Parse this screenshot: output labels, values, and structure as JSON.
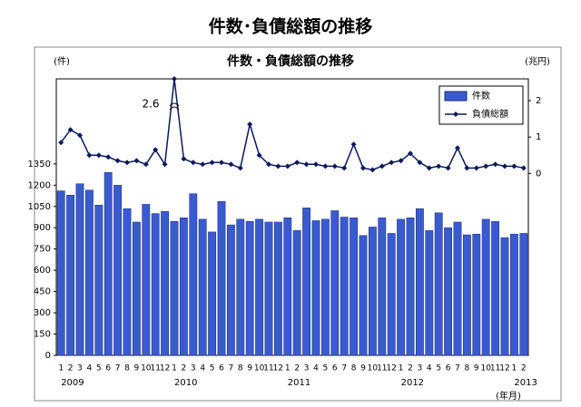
{
  "chart_data": {
    "type": "bar_line",
    "title": "件数･負債総額の推移",
    "chart_title": "件数・負債総額の推移",
    "y_label": "(件)",
    "y2_label": "(兆円)",
    "x_label": "(年月)",
    "annotation": "2.6",
    "categories": [
      "1",
      "2",
      "3",
      "4",
      "5",
      "6",
      "7",
      "8",
      "9",
      "10",
      "11",
      "12",
      "1",
      "2",
      "3",
      "4",
      "5",
      "6",
      "7",
      "8",
      "9",
      "10",
      "11",
      "12",
      "1",
      "2",
      "3",
      "4",
      "5",
      "6",
      "7",
      "8",
      "9",
      "10",
      "11",
      "12",
      "1",
      "2",
      "3",
      "4",
      "5",
      "6",
      "7",
      "8",
      "9",
      "10",
      "11",
      "12",
      "1",
      "2"
    ],
    "year_labels": [
      "2009",
      "2010",
      "2011",
      "2012",
      "2013"
    ],
    "series": [
      {
        "name": "件数",
        "color": "#3a5bd0",
        "axis": "y",
        "values": [
          1160,
          1130,
          1210,
          1165,
          1060,
          1290,
          1200,
          1035,
          940,
          1065,
          1000,
          1015,
          945,
          970,
          1140,
          960,
          870,
          1085,
          920,
          960,
          945,
          960,
          940,
          940,
          970,
          880,
          1040,
          950,
          960,
          1020,
          975,
          970,
          845,
          905,
          970,
          860,
          960,
          970,
          1035,
          880,
          1005,
          900,
          940,
          850,
          855,
          960,
          945,
          830,
          855,
          860
        ]
      },
      {
        "name": "負債総額",
        "color": "#0a1a5c",
        "axis": "y2",
        "values": [
          0.85,
          1.2,
          1.05,
          0.5,
          0.5,
          0.45,
          0.35,
          0.3,
          0.35,
          0.25,
          0.65,
          0.25,
          2.6,
          0.4,
          0.3,
          0.25,
          0.3,
          0.3,
          0.25,
          0.15,
          1.35,
          0.5,
          0.25,
          0.2,
          0.2,
          0.3,
          0.25,
          0.25,
          0.2,
          0.2,
          0.15,
          0.8,
          0.15,
          0.1,
          0.2,
          0.3,
          0.35,
          0.55,
          0.3,
          0.15,
          0.2,
          0.15,
          0.7,
          0.15,
          0.15,
          0.2,
          0.25,
          0.2,
          0.2,
          0.15
        ]
      }
    ],
    "ylim": [
      0,
      1950
    ],
    "yticks": [
      0,
      150,
      300,
      450,
      600,
      750,
      900,
      1050,
      1200,
      1350
    ],
    "y2lim": [
      -5,
      2.6
    ],
    "y2ticks": [
      0,
      1,
      2
    ],
    "legend": "top-right"
  }
}
